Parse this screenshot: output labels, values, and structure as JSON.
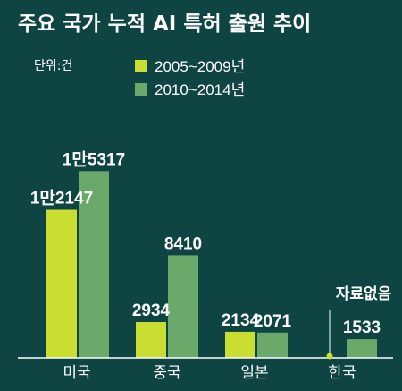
{
  "chart_data": {
    "type": "bar",
    "title": "주요 국가 누적 AI 특허 출원 추이",
    "unit_label": "단위:건",
    "categories": [
      "미국",
      "중국",
      "일본",
      "한국"
    ],
    "series": [
      {
        "name": "2005~2009년",
        "color": "#c9de30",
        "values": [
          12147,
          2934,
          2134,
          null
        ],
        "value_labels": [
          "1만2147",
          "2934",
          "2134",
          ""
        ]
      },
      {
        "name": "2010~2014년",
        "color": "#6aa96a",
        "values": [
          15317,
          8410,
          2071,
          1533
        ],
        "value_labels": [
          "1만5317",
          "8410",
          "2071",
          "1533"
        ]
      }
    ],
    "annotations": [
      {
        "category": "한국",
        "series": "2005~2009년",
        "text": "자료없음"
      }
    ],
    "legend_position": "top-center",
    "grid": false,
    "ylim": [
      0,
      16000
    ]
  }
}
